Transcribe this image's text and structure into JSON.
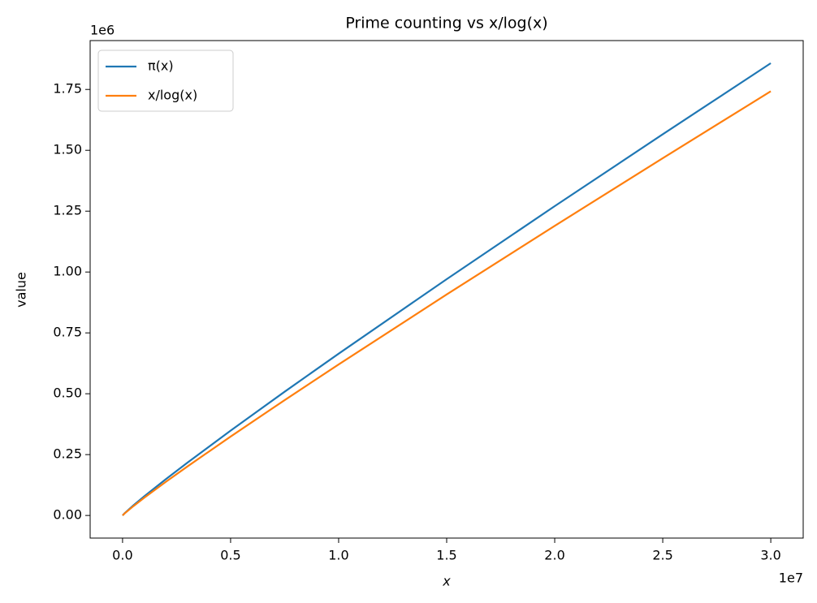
{
  "chart_data": {
    "type": "line",
    "title": "Prime counting vs x/log(x)",
    "x_label": "x",
    "y_label": "value",
    "x_offset_label": "1e7",
    "y_offset_label": "1e6",
    "x": [
      2,
      100000,
      500000,
      1000000,
      2000000,
      3000000,
      5000000,
      7500000,
      10000000,
      15000000,
      20000000,
      25000000,
      30000000
    ],
    "series": [
      {
        "name": "π(x)",
        "color": "#1f77b4",
        "values": [
          1,
          9592,
          41538,
          78498,
          148933,
          216816,
          348513,
          508261,
          664579,
          970704,
          1270607,
          1565927,
          1857859
        ]
      },
      {
        "name": "x/log(x)",
        "color": "#ff7f0e",
        "values": [
          2.885,
          8686,
          38103,
          72382,
          137849,
          201152,
          324151,
          473772,
          620421,
          907792,
          1189680,
          1467618,
          1742493
        ]
      }
    ],
    "xlim": [
      -1500000,
      31500000
    ],
    "ylim": [
      -92893,
      1950752
    ],
    "xticks": [
      {
        "value": 0,
        "label": "0.0"
      },
      {
        "value": 5000000,
        "label": "0.5"
      },
      {
        "value": 10000000,
        "label": "1.0"
      },
      {
        "value": 15000000,
        "label": "1.5"
      },
      {
        "value": 20000000,
        "label": "2.0"
      },
      {
        "value": 25000000,
        "label": "2.5"
      },
      {
        "value": 30000000,
        "label": "3.0"
      }
    ],
    "yticks": [
      {
        "value": 0,
        "label": "0.00"
      },
      {
        "value": 250000,
        "label": "0.25"
      },
      {
        "value": 500000,
        "label": "0.50"
      },
      {
        "value": 750000,
        "label": "0.75"
      },
      {
        "value": 1000000,
        "label": "1.00"
      },
      {
        "value": 1250000,
        "label": "1.25"
      },
      {
        "value": 1500000,
        "label": "1.50"
      },
      {
        "value": 1750000,
        "label": "1.75"
      }
    ],
    "grid": false,
    "legend": "upper left"
  }
}
